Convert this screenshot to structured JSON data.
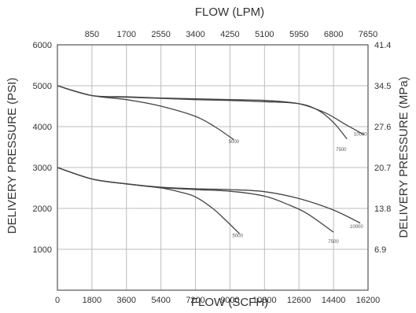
{
  "chart_data": {
    "type": "line",
    "title": "",
    "top_axis": {
      "label": "FLOW (LPM)",
      "ticks": [
        "850",
        "1700",
        "2550",
        "3400",
        "4250",
        "5100",
        "5950",
        "6800",
        "7650"
      ]
    },
    "bottom_axis": {
      "label": "FLOW (SCFH)",
      "ticks": [
        "0",
        "1800",
        "3600",
        "5400",
        "7200",
        "9000",
        "10800",
        "12600",
        "14400",
        "16200"
      ],
      "xlim": [
        0,
        16200
      ]
    },
    "left_axis": {
      "label": "DELIVERY PRESSURE (PSI)",
      "ticks": [
        "1000",
        "2000",
        "3000",
        "4000",
        "5000",
        "6000"
      ],
      "ylim": [
        0,
        6000
      ]
    },
    "right_axis": {
      "label": "DELIVERY PRESSURE (MPa)",
      "ticks": [
        "6.9",
        "13.8",
        "20.7",
        "27.6",
        "34.5",
        "41.4"
      ]
    },
    "grid": true,
    "series": [
      {
        "name": "5000",
        "x": [
          0,
          1800,
          3600,
          5400,
          7200,
          8200,
          9200
        ],
        "y": [
          5000,
          4760,
          4660,
          4500,
          4250,
          4000,
          3680
        ]
      },
      {
        "name": "7500",
        "x": [
          0,
          1800,
          3600,
          5400,
          7200,
          9000,
          10800,
          12600,
          13600,
          14400,
          15100
        ],
        "y": [
          5000,
          4760,
          4720,
          4690,
          4660,
          4640,
          4610,
          4560,
          4400,
          4100,
          3700
        ]
      },
      {
        "name": "10000",
        "x": [
          0,
          1800,
          3600,
          5400,
          7200,
          9000,
          10800,
          12600,
          14000,
          15000,
          16000
        ],
        "y": [
          5000,
          4760,
          4730,
          4700,
          4680,
          4660,
          4640,
          4560,
          4330,
          4060,
          3800
        ]
      },
      {
        "name": "5000",
        "x": [
          0,
          1800,
          3600,
          5400,
          6400,
          7200,
          8100,
          8800,
          9500
        ],
        "y": [
          3000,
          2720,
          2600,
          2500,
          2400,
          2280,
          2000,
          1700,
          1380
        ]
      },
      {
        "name": "7500",
        "x": [
          0,
          1800,
          3600,
          5400,
          7200,
          9000,
          10800,
          12000,
          13000,
          14400
        ],
        "y": [
          3000,
          2720,
          2600,
          2510,
          2460,
          2420,
          2300,
          2100,
          1880,
          1420
        ]
      },
      {
        "name": "10000",
        "x": [
          0,
          1800,
          3600,
          5400,
          7200,
          9000,
          10800,
          12600,
          14400,
          15800
        ],
        "y": [
          3000,
          2720,
          2600,
          2520,
          2480,
          2460,
          2410,
          2240,
          1960,
          1640
        ]
      }
    ],
    "curve_labels": [
      {
        "text": "5000",
        "x": 9200,
        "y": 3600
      },
      {
        "text": "7500",
        "x": 14800,
        "y": 3400
      },
      {
        "text": "10000",
        "x": 15800,
        "y": 3780
      },
      {
        "text": "5000",
        "x": 9400,
        "y": 1300
      },
      {
        "text": "7500",
        "x": 14400,
        "y": 1150
      },
      {
        "text": "10000",
        "x": 15600,
        "y": 1520
      }
    ]
  }
}
